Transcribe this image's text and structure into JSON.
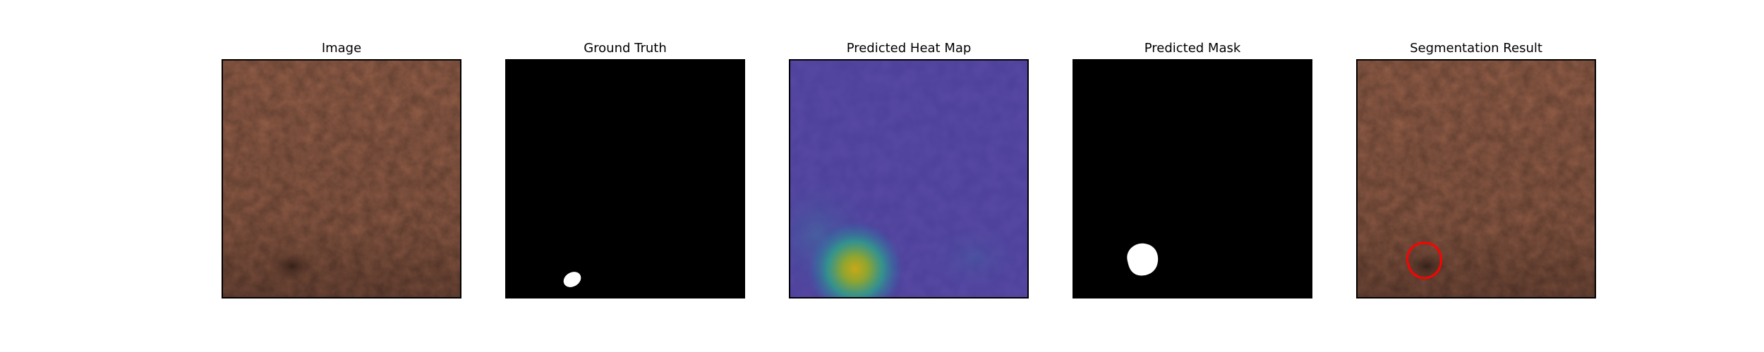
{
  "panels": [
    {
      "id": "image",
      "title": "Image"
    },
    {
      "id": "ground-truth",
      "title": "Ground Truth"
    },
    {
      "id": "heatmap",
      "title": "Predicted Heat Map"
    },
    {
      "id": "mask",
      "title": "Predicted Mask"
    },
    {
      "id": "segmentation",
      "title": "Segmentation Result"
    }
  ],
  "colors": {
    "leather": "#8c5a44",
    "leather_dark": "#6b4333",
    "mask_background": "#000000",
    "mask_foreground": "#ffffff",
    "heatmap_low": "#4a3e9a",
    "heatmap_mid": "#2fa08a",
    "heatmap_high": "#c8b020",
    "contour": "#ff0000"
  }
}
